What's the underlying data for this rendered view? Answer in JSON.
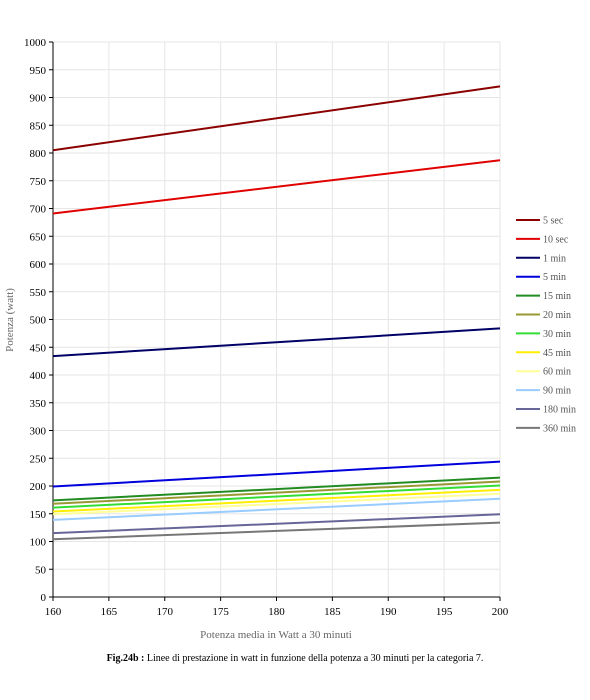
{
  "chart_data": {
    "type": "line",
    "title": "",
    "xlabel": "Potenza media in Watt a 30 minuti",
    "ylabel": "Potenza (watt)",
    "xlim": [
      160,
      200
    ],
    "ylim": [
      0,
      1000
    ],
    "x_ticks": [
      "160",
      "165",
      "170",
      "175",
      "180",
      "185",
      "190",
      "195",
      "200"
    ],
    "y_ticks": [
      "0",
      "50",
      "100",
      "150",
      "200",
      "250",
      "300",
      "350",
      "400",
      "450",
      "500",
      "550",
      "600",
      "650",
      "700",
      "750",
      "800",
      "850",
      "900",
      "950",
      "1000"
    ],
    "grid": true,
    "legend_position": "right",
    "x": [
      160,
      200
    ],
    "series": [
      {
        "name": "5 sec",
        "color": "#8b0000",
        "values": [
          805,
          920
        ]
      },
      {
        "name": "10 sec",
        "color": "#e00000",
        "values": [
          691,
          787
        ]
      },
      {
        "name": "1 min",
        "color": "#000066",
        "values": [
          434,
          484
        ]
      },
      {
        "name": "5 min",
        "color": "#0000dd",
        "values": [
          199,
          244
        ]
      },
      {
        "name": "15 min",
        "color": "#228b22",
        "values": [
          174,
          215
        ]
      },
      {
        "name": "20 min",
        "color": "#999933",
        "values": [
          168,
          208
        ]
      },
      {
        "name": "30 min",
        "color": "#33dd33",
        "values": [
          161,
          201
        ]
      },
      {
        "name": "45 min",
        "color": "#ffee00",
        "values": [
          154,
          193
        ]
      },
      {
        "name": "60 min",
        "color": "#ffff99",
        "values": [
          149,
          186
        ]
      },
      {
        "name": "90 min",
        "color": "#99ccff",
        "values": [
          139,
          177
        ]
      },
      {
        "name": "180 min",
        "color": "#666699",
        "values": [
          115,
          149
        ]
      },
      {
        "name": "360 min",
        "color": "#777777",
        "values": [
          104,
          134
        ]
      }
    ]
  },
  "caption": {
    "label": "Fig.24b :",
    "text": "Linee di prestazione in watt in funzione della potenza a 30 minuti per la categoria 7."
  }
}
